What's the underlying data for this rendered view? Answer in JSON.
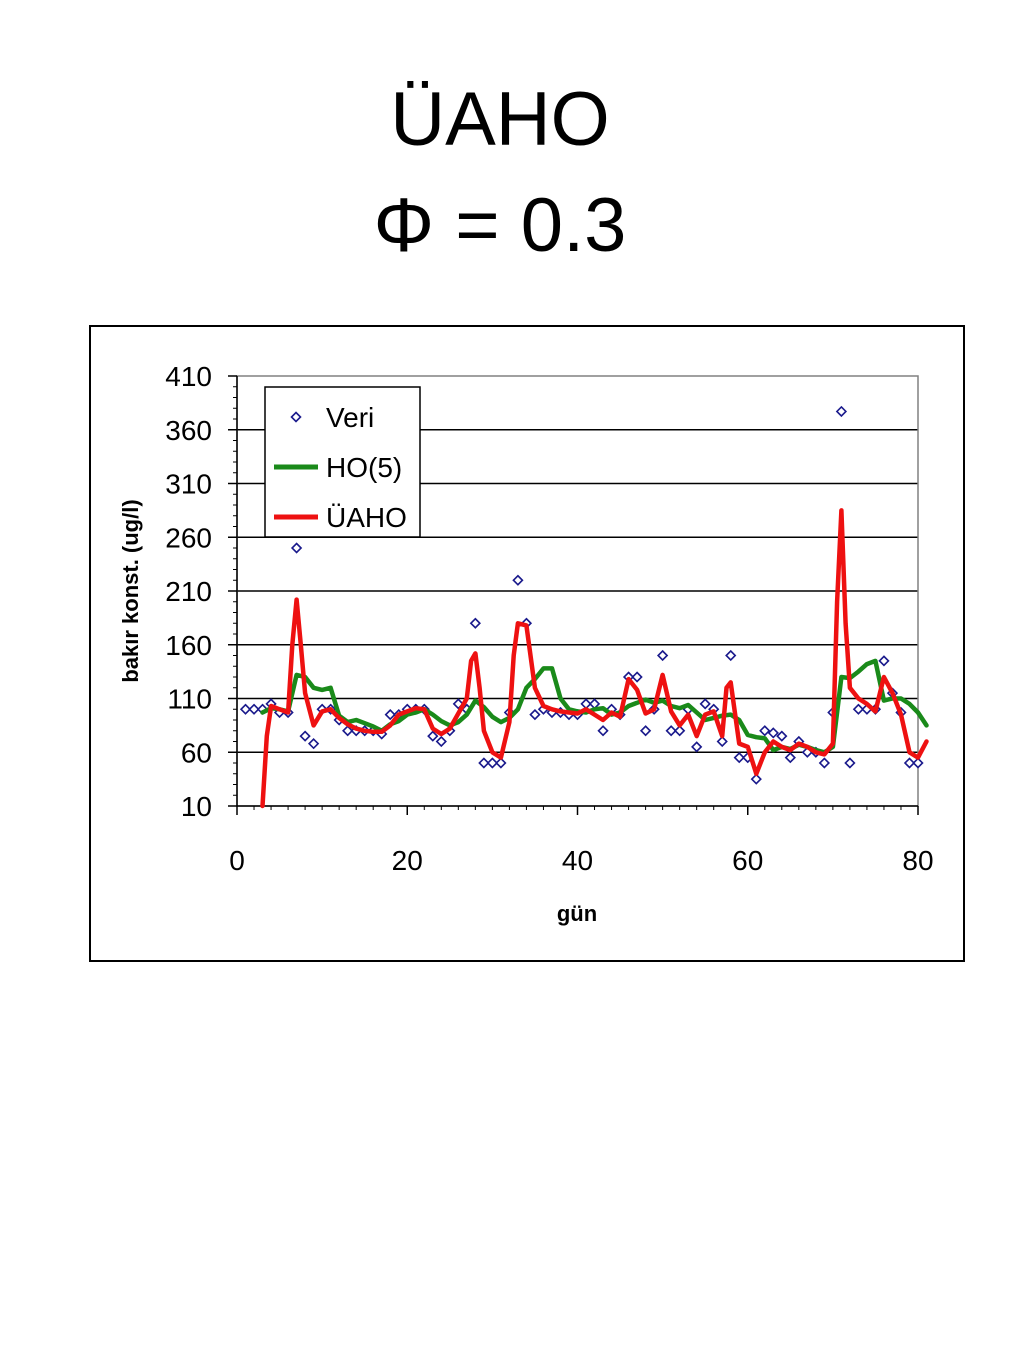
{
  "slide": {
    "title_line1": "ÜAHO",
    "title_line2": "Φ = 0.3"
  },
  "chart_data": {
    "type": "line",
    "xlabel": "gün",
    "ylabel": "bakır konst. (ug/l)",
    "xlim": [
      0,
      80
    ],
    "ylim": [
      10,
      410
    ],
    "xticks": [
      0,
      20,
      40,
      60,
      80
    ],
    "yticks": [
      10,
      60,
      110,
      160,
      210,
      260,
      310,
      360,
      410
    ],
    "grid": "horizontal",
    "legend_position": "top-left",
    "series": [
      {
        "name": "Veri",
        "style": "markers",
        "marker": "diamond",
        "color": "#1a1a8c",
        "x": [
          1,
          2,
          3,
          4,
          5,
          6,
          7,
          8,
          9,
          10,
          11,
          12,
          13,
          14,
          15,
          16,
          17,
          18,
          19,
          20,
          21,
          22,
          23,
          24,
          25,
          26,
          27,
          28,
          29,
          30,
          31,
          32,
          33,
          34,
          35,
          36,
          37,
          38,
          39,
          40,
          41,
          42,
          43,
          44,
          45,
          46,
          47,
          48,
          49,
          50,
          51,
          52,
          53,
          54,
          55,
          56,
          57,
          58,
          59,
          60,
          61,
          62,
          63,
          64,
          65,
          66,
          67,
          68,
          69,
          70,
          71,
          72,
          73,
          74,
          75,
          76,
          77,
          78,
          79,
          80
        ],
        "y": [
          100,
          100,
          100,
          105,
          97,
          97,
          250,
          75,
          68,
          100,
          100,
          90,
          80,
          80,
          80,
          80,
          77,
          95,
          95,
          100,
          100,
          100,
          75,
          70,
          80,
          105,
          100,
          180,
          50,
          50,
          50,
          97,
          220,
          180,
          95,
          100,
          97,
          97,
          95,
          95,
          105,
          105,
          80,
          100,
          95,
          130,
          130,
          80,
          100,
          150,
          80,
          80,
          100,
          65,
          105,
          100,
          70,
          150,
          55,
          55,
          35,
          80,
          78,
          75,
          55,
          70,
          60,
          60,
          50,
          97,
          377,
          50,
          100,
          100,
          100,
          145,
          115,
          97,
          50,
          50
        ]
      },
      {
        "name": "HO(5)",
        "style": "line",
        "color": "#1a8a1a",
        "x": [
          3,
          4,
          5,
          6,
          7,
          8,
          9,
          10,
          11,
          12,
          13,
          14,
          15,
          16,
          17,
          18,
          19,
          20,
          21,
          22,
          23,
          24,
          25,
          26,
          27,
          28,
          29,
          30,
          31,
          32,
          33,
          34,
          35,
          36,
          37,
          38,
          39,
          40,
          41,
          42,
          43,
          44,
          45,
          46,
          47,
          48,
          49,
          50,
          51,
          52,
          53,
          54,
          55,
          56,
          57,
          58,
          59,
          60,
          61,
          62,
          63,
          64,
          65,
          66,
          67,
          68,
          69,
          70,
          71,
          72,
          73,
          74,
          75,
          76,
          77,
          78,
          79,
          80,
          81
        ],
        "y": [
          97,
          101,
          100,
          98,
          132,
          130,
          120,
          118,
          120,
          94,
          88,
          90,
          87,
          84,
          80,
          86,
          89,
          95,
          97,
          100,
          95,
          89,
          85,
          88,
          95,
          108,
          102,
          93,
          88,
          92,
          100,
          120,
          128,
          138,
          138,
          110,
          100,
          98,
          97,
          100,
          101,
          95,
          97,
          103,
          106,
          109,
          106,
          108,
          103,
          101,
          104,
          97,
          90,
          92,
          94,
          95,
          90,
          76,
          74,
          73,
          62,
          65,
          63,
          67,
          65,
          62,
          60,
          65,
          130,
          129,
          135,
          142,
          145,
          108,
          110,
          110,
          105,
          97,
          85
        ]
      },
      {
        "name": "ÜAHO",
        "style": "line",
        "color": "#ee1111",
        "x": [
          3,
          3.5,
          4,
          5,
          6,
          6.5,
          7,
          7.5,
          8,
          9,
          10,
          11,
          12,
          13,
          14,
          15,
          16,
          17,
          18,
          19,
          20,
          21,
          22,
          23,
          24,
          25,
          26,
          27,
          27.5,
          28,
          28.5,
          29,
          30,
          31,
          32,
          32.5,
          33,
          34,
          35,
          36,
          37,
          38,
          39,
          40,
          41,
          42,
          43,
          44,
          45,
          46,
          47,
          48,
          49,
          50,
          51,
          52,
          53,
          54,
          55,
          56,
          57,
          57.5,
          58,
          59,
          60,
          61,
          62,
          63,
          64,
          65,
          66,
          67,
          68,
          69,
          70,
          70.5,
          71,
          71.5,
          72,
          73,
          74,
          75,
          76,
          77,
          78,
          79,
          80,
          81
        ],
        "y": [
          10,
          75,
          103,
          100,
          97,
          160,
          202,
          160,
          115,
          85,
          98,
          100,
          92,
          86,
          82,
          80,
          79,
          79,
          85,
          95,
          98,
          101,
          100,
          82,
          77,
          82,
          96,
          110,
          145,
          152,
          120,
          80,
          60,
          55,
          88,
          150,
          180,
          178,
          120,
          103,
          100,
          98,
          97,
          96,
          100,
          95,
          90,
          97,
          93,
          128,
          118,
          96,
          100,
          132,
          98,
          85,
          95,
          75,
          95,
          98,
          75,
          120,
          125,
          68,
          65,
          40,
          60,
          70,
          65,
          62,
          68,
          65,
          60,
          58,
          68,
          200,
          285,
          180,
          120,
          110,
          105,
          98,
          130,
          115,
          95,
          60,
          55,
          70
        ]
      }
    ]
  }
}
